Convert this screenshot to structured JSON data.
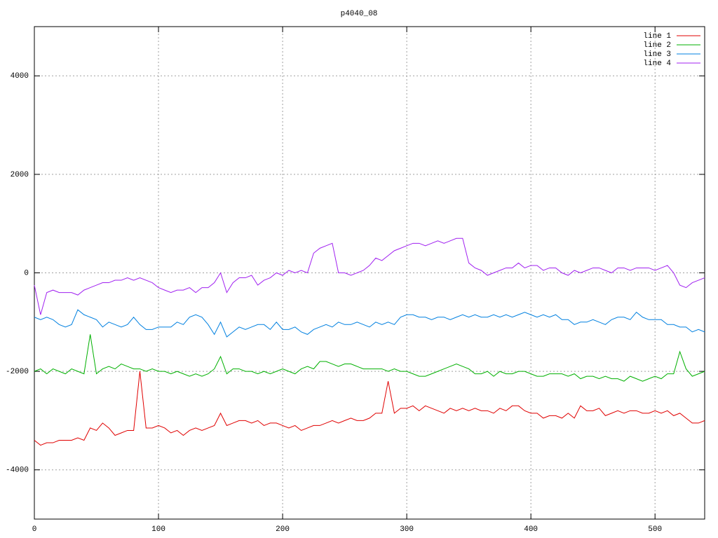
{
  "chart_data": {
    "type": "line",
    "title": "p4040_08",
    "x": [
      0,
      5,
      10,
      15,
      20,
      25,
      30,
      35,
      40,
      45,
      50,
      55,
      60,
      65,
      70,
      75,
      80,
      85,
      90,
      95,
      100,
      105,
      110,
      115,
      120,
      125,
      130,
      135,
      140,
      145,
      150,
      155,
      160,
      165,
      170,
      175,
      180,
      185,
      190,
      195,
      200,
      205,
      210,
      215,
      220,
      225,
      230,
      235,
      240,
      245,
      250,
      255,
      260,
      265,
      270,
      275,
      280,
      285,
      290,
      295,
      300,
      305,
      310,
      315,
      320,
      325,
      330,
      335,
      340,
      345,
      350,
      355,
      360,
      365,
      370,
      375,
      380,
      385,
      390,
      395,
      400,
      405,
      410,
      415,
      420,
      425,
      430,
      435,
      440,
      445,
      450,
      455,
      460,
      465,
      470,
      475,
      480,
      485,
      490,
      495,
      500,
      505,
      510,
      515,
      520,
      525,
      530,
      535,
      540
    ],
    "series": [
      {
        "name": "line 1",
        "color": "#e00000",
        "values": [
          -3400,
          -3500,
          -3450,
          -3450,
          -3400,
          -3400,
          -3400,
          -3350,
          -3400,
          -3150,
          -3200,
          -3050,
          -3150,
          -3300,
          -3250,
          -3200,
          -3200,
          -2000,
          -3150,
          -3150,
          -3100,
          -3150,
          -3250,
          -3200,
          -3300,
          -3200,
          -3150,
          -3200,
          -3150,
          -3100,
          -2850,
          -3100,
          -3050,
          -3000,
          -3000,
          -3050,
          -3000,
          -3100,
          -3050,
          -3050,
          -3100,
          -3150,
          -3100,
          -3200,
          -3150,
          -3100,
          -3100,
          -3050,
          -3000,
          -3050,
          -3000,
          -2950,
          -3000,
          -3000,
          -2950,
          -2850,
          -2850,
          -2200,
          -2850,
          -2750,
          -2750,
          -2700,
          -2800,
          -2700,
          -2750,
          -2800,
          -2850,
          -2750,
          -2800,
          -2750,
          -2800,
          -2750,
          -2800,
          -2800,
          -2850,
          -2750,
          -2800,
          -2700,
          -2700,
          -2800,
          -2850,
          -2850,
          -2950,
          -2900,
          -2900,
          -2950,
          -2850,
          -2950,
          -2700,
          -2800,
          -2800,
          -2750,
          -2900,
          -2850,
          -2800,
          -2850,
          -2800,
          -2800,
          -2850,
          -2850,
          -2800,
          -2850,
          -2800,
          -2900,
          -2850,
          -2950,
          -3050,
          -3050,
          -3000
        ]
      },
      {
        "name": "line 2",
        "color": "#00b000",
        "values": [
          -2000,
          -1950,
          -2050,
          -1950,
          -2000,
          -2050,
          -1950,
          -2000,
          -2050,
          -1250,
          -2050,
          -1950,
          -1900,
          -1950,
          -1850,
          -1900,
          -1950,
          -1950,
          -2000,
          -1950,
          -2000,
          -2000,
          -2050,
          -2000,
          -2050,
          -2100,
          -2050,
          -2100,
          -2050,
          -1950,
          -1700,
          -2050,
          -1950,
          -1950,
          -2000,
          -2000,
          -2050,
          -2000,
          -2050,
          -2000,
          -1950,
          -2000,
          -2050,
          -1950,
          -1900,
          -1950,
          -1800,
          -1800,
          -1850,
          -1900,
          -1850,
          -1850,
          -1900,
          -1950,
          -1950,
          -1950,
          -1950,
          -2000,
          -1950,
          -2000,
          -2000,
          -2050,
          -2100,
          -2100,
          -2050,
          -2000,
          -1950,
          -1900,
          -1850,
          -1900,
          -1950,
          -2050,
          -2050,
          -2000,
          -2100,
          -2000,
          -2050,
          -2050,
          -2000,
          -2000,
          -2050,
          -2100,
          -2100,
          -2050,
          -2050,
          -2050,
          -2100,
          -2050,
          -2150,
          -2100,
          -2100,
          -2150,
          -2100,
          -2150,
          -2150,
          -2200,
          -2100,
          -2150,
          -2200,
          -2150,
          -2100,
          -2150,
          -2050,
          -2050,
          -1600,
          -1950,
          -2100,
          -2050,
          -2000
        ]
      },
      {
        "name": "line 3",
        "color": "#0080e0",
        "values": [
          -900,
          -950,
          -900,
          -950,
          -1050,
          -1100,
          -1050,
          -750,
          -850,
          -900,
          -950,
          -1100,
          -1000,
          -1050,
          -1100,
          -1050,
          -900,
          -1050,
          -1150,
          -1150,
          -1100,
          -1100,
          -1100,
          -1000,
          -1050,
          -900,
          -850,
          -900,
          -1050,
          -1250,
          -1000,
          -1300,
          -1200,
          -1100,
          -1150,
          -1100,
          -1050,
          -1050,
          -1150,
          -1000,
          -1150,
          -1150,
          -1100,
          -1200,
          -1250,
          -1150,
          -1100,
          -1050,
          -1100,
          -1000,
          -1050,
          -1050,
          -1000,
          -1050,
          -1100,
          -1000,
          -1050,
          -1000,
          -1050,
          -900,
          -850,
          -850,
          -900,
          -900,
          -950,
          -900,
          -900,
          -950,
          -900,
          -850,
          -900,
          -850,
          -900,
          -900,
          -850,
          -900,
          -850,
          -900,
          -850,
          -800,
          -850,
          -900,
          -850,
          -900,
          -850,
          -950,
          -950,
          -1050,
          -1000,
          -1000,
          -950,
          -1000,
          -1050,
          -950,
          -900,
          -900,
          -950,
          -800,
          -900,
          -950,
          -950,
          -950,
          -1050,
          -1050,
          -1100,
          -1100,
          -1200,
          -1150,
          -1200
        ]
      },
      {
        "name": "line 4",
        "color": "#a020f0",
        "values": [
          -250,
          -850,
          -400,
          -350,
          -400,
          -400,
          -400,
          -450,
          -350,
          -300,
          -250,
          -200,
          -200,
          -150,
          -150,
          -100,
          -150,
          -100,
          -150,
          -200,
          -300,
          -350,
          -400,
          -350,
          -350,
          -300,
          -400,
          -300,
          -300,
          -200,
          0,
          -400,
          -200,
          -100,
          -100,
          -50,
          -250,
          -150,
          -100,
          0,
          -50,
          50,
          0,
          50,
          0,
          400,
          500,
          550,
          600,
          0,
          0,
          -50,
          0,
          50,
          150,
          300,
          250,
          350,
          450,
          500,
          550,
          600,
          600,
          550,
          600,
          650,
          600,
          650,
          700,
          700,
          200,
          100,
          50,
          -50,
          0,
          50,
          100,
          100,
          200,
          100,
          150,
          150,
          50,
          100,
          100,
          0,
          -50,
          50,
          0,
          50,
          100,
          100,
          50,
          0,
          100,
          100,
          50,
          100,
          100,
          100,
          50,
          100,
          150,
          0,
          -250,
          -300,
          -200,
          -150,
          -100
        ]
      }
    ],
    "xlim": [
      0,
      540
    ],
    "ylim": [
      -5000,
      5000
    ],
    "xticks": [
      0,
      100,
      200,
      300,
      400,
      500
    ],
    "yticks": [
      -4000,
      -2000,
      0,
      2000,
      4000
    ],
    "grid": true,
    "legend": "top-right"
  }
}
